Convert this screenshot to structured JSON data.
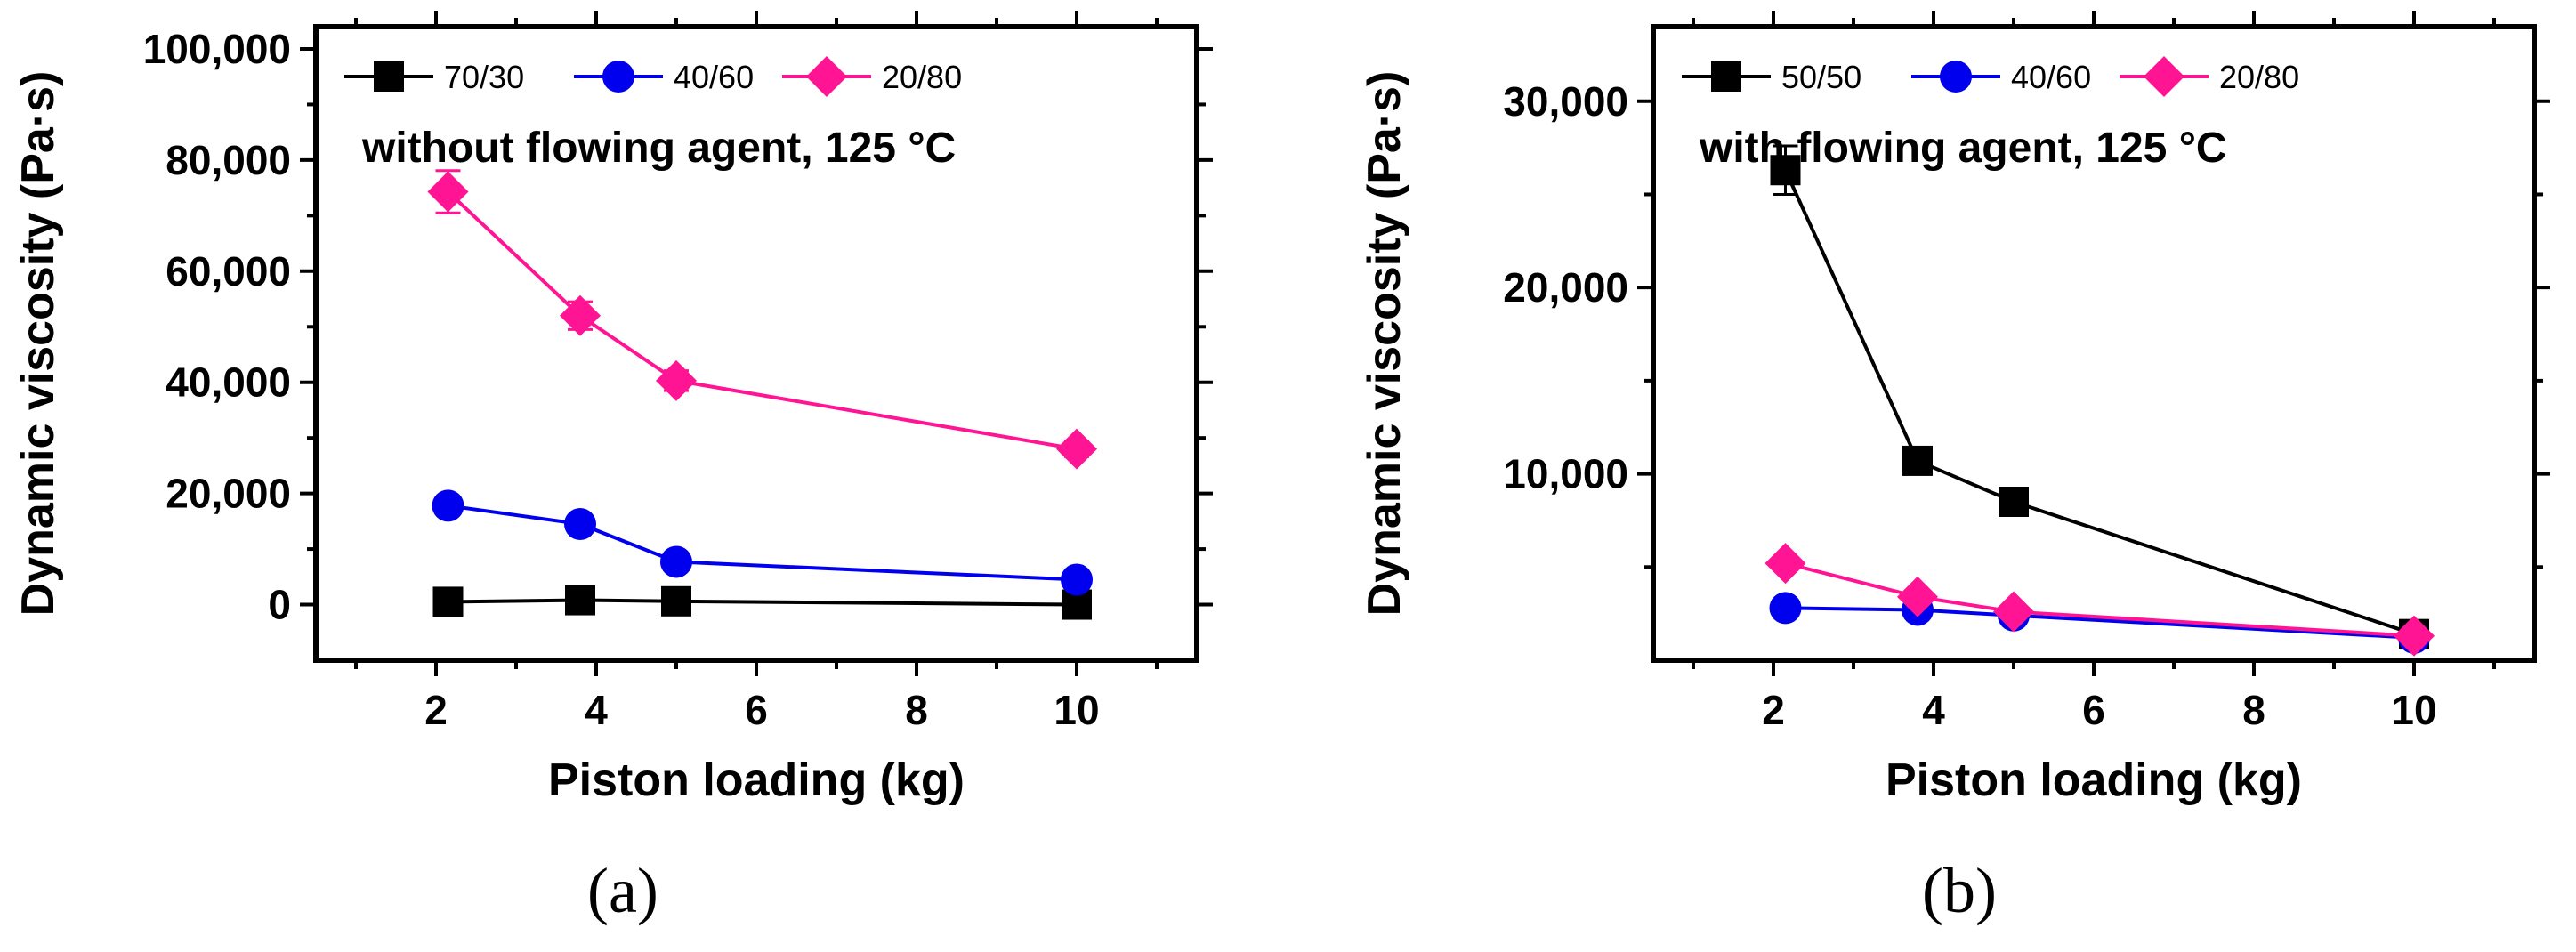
{
  "chart_data": [
    {
      "type": "line",
      "panel_label": "(a)",
      "annotation": "without flowing agent, 125 °C",
      "xlabel": "Piston loading (kg)",
      "ylabel": "Dynamic viscosity (Pa·s)",
      "xlim": [
        0.5,
        11.5
      ],
      "ylim": [
        -10000,
        104000
      ],
      "xticks": [
        2,
        4,
        6,
        8,
        10
      ],
      "xtick_labels": [
        "2",
        "4",
        "6",
        "8",
        "10"
      ],
      "yticks": [
        0,
        20000,
        40000,
        60000,
        80000,
        100000
      ],
      "ytick_labels": [
        "0",
        "20,000",
        "40,000",
        "60,000",
        "80,000",
        "100,000"
      ],
      "x": [
        2.15,
        3.8,
        5.0,
        10.0
      ],
      "series": [
        {
          "name": "70/30",
          "color": "#000000",
          "marker": "square",
          "values": [
            500,
            800,
            600,
            0
          ],
          "errors": [
            0,
            0,
            0,
            0
          ]
        },
        {
          "name": "40/60",
          "color": "#0000ee",
          "marker": "circle",
          "values": [
            17800,
            14500,
            7700,
            4500
          ],
          "errors": [
            800,
            600,
            500,
            300
          ]
        },
        {
          "name": "20/80",
          "color": "#ff1493",
          "marker": "diamond",
          "values": [
            74300,
            52000,
            40300,
            28000
          ],
          "errors": [
            3800,
            2500,
            1800,
            1400
          ]
        }
      ]
    },
    {
      "type": "line",
      "panel_label": "(b)",
      "annotation": "with flowing agent, 125 °C",
      "xlabel": "Piston loading (kg)",
      "ylabel": "Dynamic viscosity (Pa·s)",
      "xlim": [
        0.5,
        11.5
      ],
      "ylim": [
        0,
        34000
      ],
      "xticks": [
        2,
        4,
        6,
        8,
        10
      ],
      "xtick_labels": [
        "2",
        "4",
        "6",
        "8",
        "10"
      ],
      "yticks": [
        10000,
        20000,
        30000
      ],
      "ytick_labels": [
        "10,000",
        "20,000",
        "30,000"
      ],
      "x": [
        2.15,
        3.8,
        5.0,
        10.0
      ],
      "series": [
        {
          "name": "50/50",
          "color": "#000000",
          "marker": "square",
          "values": [
            26300,
            10700,
            8500,
            1400
          ],
          "errors": [
            1300,
            200,
            200,
            100
          ]
        },
        {
          "name": "40/60",
          "color": "#0000ee",
          "marker": "circle",
          "values": [
            2800,
            2700,
            2400,
            1200
          ],
          "errors": [
            100,
            100,
            100,
            100
          ]
        },
        {
          "name": "20/80",
          "color": "#ff1493",
          "marker": "diamond",
          "values": [
            5200,
            3400,
            2600,
            1300
          ],
          "errors": [
            200,
            150,
            150,
            100
          ]
        }
      ]
    }
  ]
}
